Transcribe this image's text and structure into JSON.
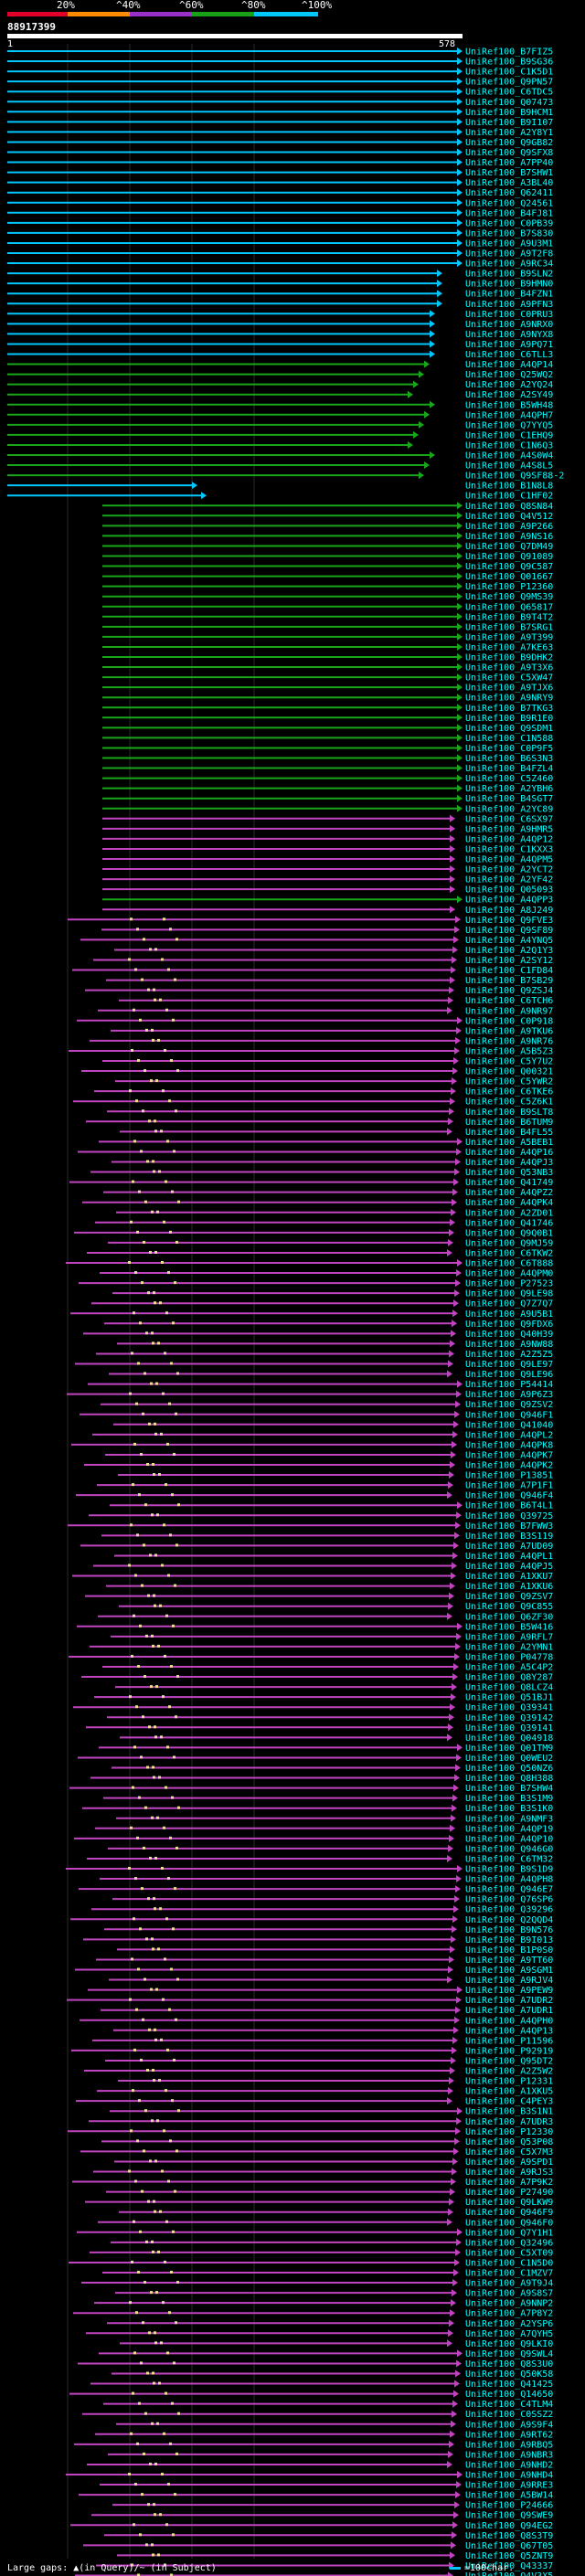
{
  "legend": {
    "ticks": [
      "20%",
      "^40%",
      "^60%",
      "^80%",
      "^100%"
    ],
    "colors": [
      "#e0002a",
      "#ff8c00",
      "#9b30c8",
      "#18a018",
      "#00c8ff"
    ]
  },
  "query": {
    "id": "88917399",
    "start": "1",
    "length": "578"
  },
  "footer": {
    "left": "Large gaps: ▲(in Query)/~ (in Subject)",
    "right": "=100char."
  },
  "hits": [
    {
      "label": "UniRef100_B7FIZ5",
      "color": "cyan"
    },
    {
      "label": "UniRef100_B9SG36",
      "color": "cyan"
    },
    {
      "label": "UniRef100_C1K5D1",
      "color": "cyan"
    },
    {
      "label": "UniRef100_Q9PN57",
      "color": "cyan"
    },
    {
      "label": "UniRef100_C6TDC5",
      "color": "cyan"
    },
    {
      "label": "UniRef100_Q07473",
      "color": "cyan"
    },
    {
      "label": "UniRef100_B9HCM1",
      "color": "cyan"
    },
    {
      "label": "UniRef100_B9I107",
      "color": "cyan"
    },
    {
      "label": "UniRef100_A2Y8Y1",
      "color": "cyan"
    },
    {
      "label": "UniRef100_Q9GB82",
      "color": "cyan"
    },
    {
      "label": "UniRef100_Q9SFX8",
      "color": "cyan"
    },
    {
      "label": "UniRef100_A7PP40",
      "color": "cyan"
    },
    {
      "label": "UniRef100_B7SHW1",
      "color": "cyan"
    },
    {
      "label": "UniRef100_A3BL40",
      "color": "cyan"
    },
    {
      "label": "UniRef100_Q62411",
      "color": "cyan"
    },
    {
      "label": "UniRef100_Q24561",
      "color": "cyan"
    },
    {
      "label": "UniRef100_B4FJ81",
      "color": "cyan"
    },
    {
      "label": "UniRef100_C0PB39",
      "color": "cyan"
    },
    {
      "label": "UniRef100_B7S830",
      "color": "cyan"
    },
    {
      "label": "UniRef100_A9U3M1",
      "color": "cyan"
    },
    {
      "label": "UniRef100_A9T2F8",
      "color": "cyan"
    },
    {
      "label": "UniRef100_A9RC34",
      "color": "cyan"
    },
    {
      "label": "UniRef100_B9SLN2",
      "color": "cyan"
    },
    {
      "label": "UniRef100_B9HMN0",
      "color": "cyan"
    },
    {
      "label": "UniRef100_B4FZN1",
      "color": "cyan"
    },
    {
      "label": "UniRef100_A9PFN3",
      "color": "cyan"
    },
    {
      "label": "UniRef100_C0PRU3",
      "color": "cyan"
    },
    {
      "label": "UniRef100_A9NRX0",
      "color": "cyan"
    },
    {
      "label": "UniRef100_A9NYX8",
      "color": "cyan"
    },
    {
      "label": "UniRef100_A9PQ71",
      "color": "cyan"
    },
    {
      "label": "UniRef100_C6TLL3",
      "color": "cyan"
    },
    {
      "label": "UniRef100_A4QP14",
      "color": "green"
    },
    {
      "label": "UniRef100_Q25WQ2",
      "color": "green"
    },
    {
      "label": "UniRef100_A2YQ24",
      "color": "green"
    },
    {
      "label": "UniRef100_A2SY49",
      "color": "green"
    },
    {
      "label": "UniRef100_B5WH48",
      "color": "green"
    },
    {
      "label": "UniRef100_A4QPH7",
      "color": "green"
    },
    {
      "label": "UniRef100_Q7YYQ5",
      "color": "green"
    },
    {
      "label": "UniRef100_C1EHQ9",
      "color": "green"
    },
    {
      "label": "UniRef100_C1N6Q3",
      "color": "green"
    },
    {
      "label": "UniRef100_A4S0W4",
      "color": "green"
    },
    {
      "label": "UniRef100_A4S8L5",
      "color": "green"
    },
    {
      "label": "UniRef100_Q9SF88-2",
      "color": "green"
    },
    {
      "label": "UniRef100_B1N8L8",
      "color": "cyan"
    },
    {
      "label": "UniRef100_C1HF02",
      "color": "cyan"
    },
    {
      "label": "UniRef100_Q8SN84",
      "color": "green"
    },
    {
      "label": "UniRef100_Q4V512",
      "color": "green"
    },
    {
      "label": "UniRef100_A9P266",
      "color": "green"
    },
    {
      "label": "UniRef100_A9NS16",
      "color": "green"
    },
    {
      "label": "UniRef100_Q7DM49",
      "color": "green"
    },
    {
      "label": "UniRef100_Q91089",
      "color": "green"
    },
    {
      "label": "UniRef100_Q9C587",
      "color": "green"
    },
    {
      "label": "UniRef100_Q01667",
      "color": "green"
    },
    {
      "label": "UniRef100_P12360",
      "color": "green"
    },
    {
      "label": "UniRef100_Q9MS39",
      "color": "green"
    },
    {
      "label": "UniRef100_Q65817",
      "color": "green"
    },
    {
      "label": "UniRef100_B9T4T2",
      "color": "green"
    },
    {
      "label": "UniRef100_B7SRG1",
      "color": "green"
    },
    {
      "label": "UniRef100_A9T399",
      "color": "green"
    },
    {
      "label": "UniRef100_A7KE63",
      "color": "green"
    },
    {
      "label": "UniRef100_B9DHK2",
      "color": "green"
    },
    {
      "label": "UniRef100_A9T3X6",
      "color": "green"
    },
    {
      "label": "UniRef100_C5XW47",
      "color": "green"
    },
    {
      "label": "UniRef100_A9TJX6",
      "color": "green"
    },
    {
      "label": "UniRef100_A9NRY9",
      "color": "green"
    },
    {
      "label": "UniRef100_B7TKG3",
      "color": "green"
    },
    {
      "label": "UniRef100_B9R1E0",
      "color": "green"
    },
    {
      "label": "UniRef100_Q9SDM1",
      "color": "green"
    },
    {
      "label": "UniRef100_C1N588",
      "color": "green"
    },
    {
      "label": "UniRef100_C0P9F5",
      "color": "green"
    },
    {
      "label": "UniRef100_B6S3N3",
      "color": "green"
    },
    {
      "label": "UniRef100_B4FZL4",
      "color": "green"
    },
    {
      "label": "UniRef100_C5Z460",
      "color": "green"
    },
    {
      "label": "UniRef100_A2YBH6",
      "color": "green"
    },
    {
      "label": "UniRef100_B4SGT7",
      "color": "green"
    },
    {
      "label": "UniRef100_A2YC89",
      "color": "green"
    },
    {
      "label": "UniRef100_C6SX97",
      "color": "magenta"
    },
    {
      "label": "UniRef100_A9HMR5",
      "color": "magenta"
    },
    {
      "label": "UniRef100_A4QP12",
      "color": "magenta"
    },
    {
      "label": "UniRef100_C1KXX3",
      "color": "magenta"
    },
    {
      "label": "UniRef100_A4QPM5",
      "color": "magenta"
    },
    {
      "label": "UniRef100_A2YCT2",
      "color": "magenta"
    },
    {
      "label": "UniRef100_A2YF42",
      "color": "magenta"
    },
    {
      "label": "UniRef100_Q05093",
      "color": "magenta"
    },
    {
      "label": "UniRef100_A4QPP3",
      "color": "green"
    },
    {
      "label": "UniRef100_A8J249",
      "color": "magenta"
    },
    {
      "label": "UniRef100_Q9FVE3",
      "color": "magenta"
    },
    {
      "label": "UniRef100_Q9SF89",
      "color": "magenta"
    },
    {
      "label": "UniRef100_A4YNQ5",
      "color": "magenta"
    },
    {
      "label": "UniRef100_A2Q1Y3",
      "color": "magenta"
    },
    {
      "label": "UniRef100_A2SY12",
      "color": "magenta"
    },
    {
      "label": "UniRef100_C1FD84",
      "color": "magenta"
    },
    {
      "label": "UniRef100_B7SB29",
      "color": "magenta"
    },
    {
      "label": "UniRef100_Q9ZSJ4",
      "color": "magenta"
    },
    {
      "label": "UniRef100_C6TCH6",
      "color": "magenta"
    },
    {
      "label": "UniRef100_A9NR97",
      "color": "magenta"
    },
    {
      "label": "UniRef100_C0P918",
      "color": "magenta"
    },
    {
      "label": "UniRef100_A9TKU6",
      "color": "magenta"
    },
    {
      "label": "UniRef100_A9NR76",
      "color": "magenta"
    },
    {
      "label": "UniRef100_A5B5Z3",
      "color": "magenta"
    },
    {
      "label": "UniRef100_C5Y7U2",
      "color": "magenta"
    },
    {
      "label": "UniRef100_Q00321",
      "color": "magenta"
    },
    {
      "label": "UniRef100_C5YWR2",
      "color": "magenta"
    },
    {
      "label": "UniRef100_C6TKE6",
      "color": "magenta"
    },
    {
      "label": "UniRef100_C5Z6K1",
      "color": "magenta"
    },
    {
      "label": "UniRef100_B9SLT8",
      "color": "magenta"
    },
    {
      "label": "UniRef100_B6TUM9",
      "color": "magenta"
    },
    {
      "label": "UniRef100_B4FL55",
      "color": "magenta"
    },
    {
      "label": "UniRef100_A5BEB1",
      "color": "magenta"
    },
    {
      "label": "UniRef100_A4QP16",
      "color": "magenta"
    },
    {
      "label": "UniRef100_A4QPJ3",
      "color": "magenta"
    },
    {
      "label": "UniRef100_Q53NB3",
      "color": "magenta"
    },
    {
      "label": "UniRef100_Q41749",
      "color": "magenta"
    },
    {
      "label": "UniRef100_A4QPZ2",
      "color": "magenta"
    },
    {
      "label": "UniRef100_A4QPK4",
      "color": "magenta"
    },
    {
      "label": "UniRef100_A2ZD01",
      "color": "magenta"
    },
    {
      "label": "UniRef100_Q41746",
      "color": "magenta"
    },
    {
      "label": "UniRef100_Q9Q0B1",
      "color": "magenta"
    },
    {
      "label": "UniRef100_Q9MJ59",
      "color": "magenta"
    },
    {
      "label": "UniRef100_C6TKW2",
      "color": "magenta"
    },
    {
      "label": "UniRef100_C6T888",
      "color": "magenta"
    },
    {
      "label": "UniRef100_A4QPM0",
      "color": "magenta"
    },
    {
      "label": "UniRef100_P27523",
      "color": "magenta"
    },
    {
      "label": "UniRef100_Q9LE98",
      "color": "magenta"
    },
    {
      "label": "UniRef100_Q7Z7Q7",
      "color": "magenta"
    },
    {
      "label": "UniRef100_A9U5B1",
      "color": "magenta"
    },
    {
      "label": "UniRef100_Q9FDX6",
      "color": "magenta"
    },
    {
      "label": "UniRef100_Q40H39",
      "color": "magenta"
    },
    {
      "label": "UniRef100_A9NW88",
      "color": "magenta"
    },
    {
      "label": "UniRef100_A2Z5Z5",
      "color": "magenta"
    },
    {
      "label": "UniRef100_Q9LE97",
      "color": "magenta"
    },
    {
      "label": "UniRef100_Q9LE96",
      "color": "magenta"
    },
    {
      "label": "UniRef100_P54414",
      "color": "magenta"
    },
    {
      "label": "UniRef100_A9P6Z3",
      "color": "magenta"
    },
    {
      "label": "UniRef100_Q9ZSV2",
      "color": "magenta"
    },
    {
      "label": "UniRef100_Q946F1",
      "color": "magenta"
    },
    {
      "label": "UniRef100_Q41040",
      "color": "magenta"
    },
    {
      "label": "UniRef100_A4QPL2",
      "color": "magenta"
    },
    {
      "label": "UniRef100_A4QPK8",
      "color": "magenta"
    },
    {
      "label": "UniRef100_A4QPK7",
      "color": "magenta"
    },
    {
      "label": "UniRef100_A4QPK2",
      "color": "magenta"
    },
    {
      "label": "UniRef100_P13851",
      "color": "magenta"
    },
    {
      "label": "UniRef100_A7P1F1",
      "color": "magenta"
    },
    {
      "label": "UniRef100_Q946F4",
      "color": "magenta"
    },
    {
      "label": "UniRef100_B6T4L1",
      "color": "magenta"
    },
    {
      "label": "UniRef100_Q39725",
      "color": "magenta"
    },
    {
      "label": "UniRef100_B7FWW3",
      "color": "magenta"
    },
    {
      "label": "UniRef100_B3S119",
      "color": "magenta"
    },
    {
      "label": "UniRef100_A7UD09",
      "color": "magenta"
    },
    {
      "label": "UniRef100_A4QPL1",
      "color": "magenta"
    },
    {
      "label": "UniRef100_A4QPJ5",
      "color": "magenta"
    },
    {
      "label": "UniRef100_A1XKU7",
      "color": "magenta"
    },
    {
      "label": "UniRef100_A1XKU6",
      "color": "magenta"
    },
    {
      "label": "UniRef100_Q9ZSV7",
      "color": "magenta"
    },
    {
      "label": "UniRef100_Q9C855",
      "color": "magenta"
    },
    {
      "label": "UniRef100_Q6ZF30",
      "color": "magenta"
    },
    {
      "label": "UniRef100_B5W416",
      "color": "magenta"
    },
    {
      "label": "UniRef100_A9RFL7",
      "color": "magenta"
    },
    {
      "label": "UniRef100_A2YMN1",
      "color": "magenta"
    },
    {
      "label": "UniRef100_P04778",
      "color": "magenta"
    },
    {
      "label": "UniRef100_A5C4P2",
      "color": "magenta"
    },
    {
      "label": "UniRef100_Q8Y287",
      "color": "magenta"
    },
    {
      "label": "UniRef100_Q8LCZ4",
      "color": "magenta"
    },
    {
      "label": "UniRef100_Q51BJ1",
      "color": "magenta"
    },
    {
      "label": "UniRef100_Q39341",
      "color": "magenta"
    },
    {
      "label": "UniRef100_Q39142",
      "color": "magenta"
    },
    {
      "label": "UniRef100_Q39141",
      "color": "magenta"
    },
    {
      "label": "UniRef100_Q04918",
      "color": "magenta"
    },
    {
      "label": "UniRef100_Q01TM9",
      "color": "magenta"
    },
    {
      "label": "UniRef100_Q0WEU2",
      "color": "magenta"
    },
    {
      "label": "UniRef100_Q50NZ6",
      "color": "magenta"
    },
    {
      "label": "UniRef100_Q8H388",
      "color": "magenta"
    },
    {
      "label": "UniRef100_B7SHW4",
      "color": "magenta"
    },
    {
      "label": "UniRef100_B3S1M9",
      "color": "magenta"
    },
    {
      "label": "UniRef100_B3S1K0",
      "color": "magenta"
    },
    {
      "label": "UniRef100_A9NMF3",
      "color": "magenta"
    },
    {
      "label": "UniRef100_A4QP19",
      "color": "magenta"
    },
    {
      "label": "UniRef100_A4QP10",
      "color": "magenta"
    },
    {
      "label": "UniRef100_Q946G0",
      "color": "magenta"
    },
    {
      "label": "UniRef100_C6TM32",
      "color": "magenta"
    },
    {
      "label": "UniRef100_B9S1D9",
      "color": "magenta"
    },
    {
      "label": "UniRef100_A4QPH8",
      "color": "magenta"
    },
    {
      "label": "UniRef100_Q946E7",
      "color": "magenta"
    },
    {
      "label": "UniRef100_Q76SP6",
      "color": "magenta"
    },
    {
      "label": "UniRef100_Q39296",
      "color": "magenta"
    },
    {
      "label": "UniRef100_Q2QQD4",
      "color": "magenta"
    },
    {
      "label": "UniRef100_B9N576",
      "color": "magenta"
    },
    {
      "label": "UniRef100_B9I013",
      "color": "magenta"
    },
    {
      "label": "UniRef100_B1P0S0",
      "color": "magenta"
    },
    {
      "label": "UniRef100_A9TT60",
      "color": "magenta"
    },
    {
      "label": "UniRef100_A9SGM1",
      "color": "magenta"
    },
    {
      "label": "UniRef100_A9RJV4",
      "color": "magenta"
    },
    {
      "label": "UniRef100_A9PEW9",
      "color": "magenta"
    },
    {
      "label": "UniRef100_A7UDR2",
      "color": "magenta"
    },
    {
      "label": "UniRef100_A7UDR1",
      "color": "magenta"
    },
    {
      "label": "UniRef100_A4QPH0",
      "color": "magenta"
    },
    {
      "label": "UniRef100_A4QP13",
      "color": "magenta"
    },
    {
      "label": "UniRef100_P11596",
      "color": "magenta"
    },
    {
      "label": "UniRef100_P92919",
      "color": "magenta"
    },
    {
      "label": "UniRef100_Q95DT2",
      "color": "magenta"
    },
    {
      "label": "UniRef100_A2Z5W2",
      "color": "magenta"
    },
    {
      "label": "UniRef100_P12331",
      "color": "magenta"
    },
    {
      "label": "UniRef100_A1XKU5",
      "color": "magenta"
    },
    {
      "label": "UniRef100_C4PEY3",
      "color": "magenta"
    },
    {
      "label": "UniRef100_B3S1N1",
      "color": "magenta"
    },
    {
      "label": "UniRef100_A7UDR3",
      "color": "magenta"
    },
    {
      "label": "UniRef100_P12330",
      "color": "magenta"
    },
    {
      "label": "UniRef100_Q53P08",
      "color": "magenta"
    },
    {
      "label": "UniRef100_C5X7M3",
      "color": "magenta"
    },
    {
      "label": "UniRef100_A9SPD1",
      "color": "magenta"
    },
    {
      "label": "UniRef100_A9RJS3",
      "color": "magenta"
    },
    {
      "label": "UniRef100_A7P9K2",
      "color": "magenta"
    },
    {
      "label": "UniRef100_P27490",
      "color": "magenta"
    },
    {
      "label": "UniRef100_Q9LKW9",
      "color": "magenta"
    },
    {
      "label": "UniRef100_Q946F9",
      "color": "magenta"
    },
    {
      "label": "UniRef100_Q946F0",
      "color": "magenta"
    },
    {
      "label": "UniRef100_Q7Y1H1",
      "color": "magenta"
    },
    {
      "label": "UniRef100_Q32496",
      "color": "magenta"
    },
    {
      "label": "UniRef100_C5XT09",
      "color": "magenta"
    },
    {
      "label": "UniRef100_C1N5D0",
      "color": "magenta"
    },
    {
      "label": "UniRef100_C1MZV7",
      "color": "magenta"
    },
    {
      "label": "UniRef100_A9T9J4",
      "color": "magenta"
    },
    {
      "label": "UniRef100_A9S8S7",
      "color": "magenta"
    },
    {
      "label": "UniRef100_A9NNP2",
      "color": "magenta"
    },
    {
      "label": "UniRef100_A7P8Y2",
      "color": "magenta"
    },
    {
      "label": "UniRef100_A2YSP6",
      "color": "magenta"
    },
    {
      "label": "UniRef100_A7QYH5",
      "color": "magenta"
    },
    {
      "label": "UniRef100_Q9LKI0",
      "color": "magenta"
    },
    {
      "label": "UniRef100_Q9SWL4",
      "color": "magenta"
    },
    {
      "label": "UniRef100_Q8S3U0",
      "color": "magenta"
    },
    {
      "label": "UniRef100_Q50K58",
      "color": "magenta"
    },
    {
      "label": "UniRef100_Q41425",
      "color": "magenta"
    },
    {
      "label": "UniRef100_Q14650",
      "color": "magenta"
    },
    {
      "label": "UniRef100_C4TLM4",
      "color": "magenta"
    },
    {
      "label": "UniRef100_C0SSZ2",
      "color": "magenta"
    },
    {
      "label": "UniRef100_A9S9F4",
      "color": "magenta"
    },
    {
      "label": "UniRef100_A9RT62",
      "color": "magenta"
    },
    {
      "label": "UniRef100_A9RBQ5",
      "color": "magenta"
    },
    {
      "label": "UniRef100_A9NBR3",
      "color": "magenta"
    },
    {
      "label": "UniRef100_A9NHD2",
      "color": "magenta"
    },
    {
      "label": "UniRef100_A9NHD4",
      "color": "magenta"
    },
    {
      "label": "UniRef100_A9RRE3",
      "color": "magenta"
    },
    {
      "label": "UniRef100_A5BW14",
      "color": "magenta"
    },
    {
      "label": "UniRef100_P24666",
      "color": "magenta"
    },
    {
      "label": "UniRef100_Q9SWE9",
      "color": "magenta"
    },
    {
      "label": "UniRef100_Q94EG2",
      "color": "magenta"
    },
    {
      "label": "UniRef100_Q8S3T9",
      "color": "magenta"
    },
    {
      "label": "UniRef100_Q67T05",
      "color": "magenta"
    },
    {
      "label": "UniRef100_Q5ZNT9",
      "color": "magenta"
    },
    {
      "label": "UniRef100_Q43337",
      "color": "magenta"
    },
    {
      "label": "UniRef100_Q4V3X5",
      "color": "magenta"
    }
  ]
}
